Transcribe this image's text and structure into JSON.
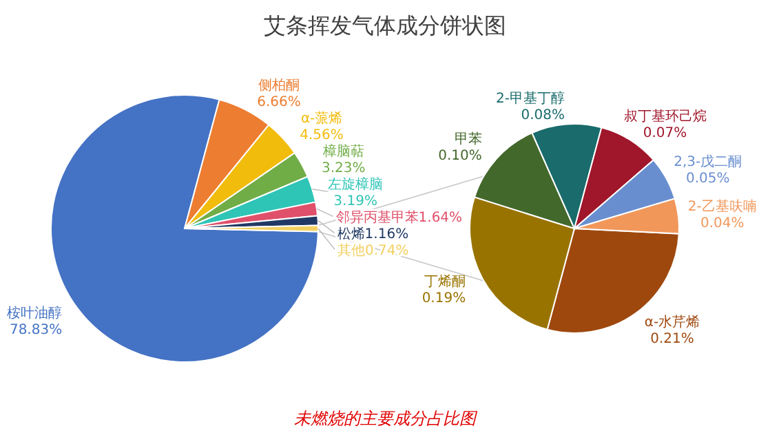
{
  "chart_data": [
    {
      "type": "pie",
      "title": "艾条挥发气体成分饼状图",
      "annotations": [
        "未燃烧的主要成分占比图"
      ],
      "categories": [
        "桉叶油醇",
        "侧柏酮",
        "α-蒎烯",
        "樟脑萜",
        "左旋樟脑",
        "邻异丙基甲苯",
        "松烯",
        "其他"
      ],
      "values": [
        78.83,
        6.66,
        4.56,
        3.23,
        3.19,
        1.64,
        1.16,
        0.74
      ],
      "value_labels": [
        "78.83%",
        "6.66%",
        "4.56%",
        "3.23%",
        "3.19%",
        "1.64%",
        "1.16%",
        "0.74%"
      ],
      "colors": [
        "#4472c4",
        "#ed7d31",
        "#f2bc0d",
        "#70ad47",
        "#2ec4b6",
        "#e0506a",
        "#203864",
        "#f2d060"
      ]
    },
    {
      "type": "pie",
      "categories": [
        "α-水芹烯",
        "丁烯酮",
        "甲苯",
        "2-甲基丁醇",
        "叔丁基环己烷",
        "2,3-戊二酮",
        "2-乙基呋喃"
      ],
      "values": [
        0.21,
        0.19,
        0.1,
        0.08,
        0.07,
        0.05,
        0.04
      ],
      "value_labels": [
        "0.21%",
        "0.19%",
        "0.10%",
        "0.08%",
        "0.07%",
        "0.05%",
        "0.04%"
      ],
      "colors": [
        "#9e480e",
        "#997300",
        "#43682b",
        "#1a6b6b",
        "#a0162b",
        "#698ed0",
        "#f1975a"
      ]
    }
  ]
}
